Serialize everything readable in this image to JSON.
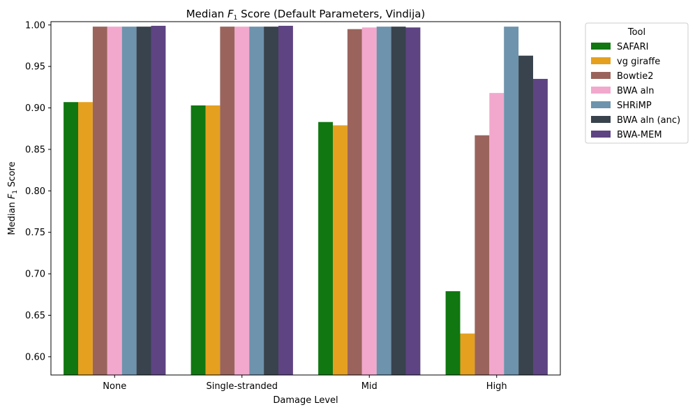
{
  "chart_data": {
    "type": "bar",
    "title": {
      "prefix": "Median ",
      "var": "F",
      "sub": "1",
      "suffix": " Score (Default Parameters, Vindija)"
    },
    "xlabel": "Damage Level",
    "ylabel": {
      "prefix": "Median ",
      "var": "F",
      "sub": "1",
      "suffix": " Score"
    },
    "categories": [
      "None",
      "Single-stranded",
      "Mid",
      "High"
    ],
    "ylim": [
      0.578,
      1.004
    ],
    "yticks": [
      "0.60",
      "0.65",
      "0.70",
      "0.75",
      "0.80",
      "0.85",
      "0.90",
      "0.95",
      "1.00"
    ],
    "grid": false,
    "legend": {
      "title": "Tool",
      "placement": "outside-top-right"
    },
    "series": [
      {
        "name": "SAFARI",
        "color": "#117711",
        "values": [
          0.907,
          0.903,
          0.883,
          0.679
        ]
      },
      {
        "name": "vg giraffe",
        "color": "#e5a01f",
        "values": [
          0.907,
          0.903,
          0.879,
          0.628
        ]
      },
      {
        "name": "Bowtie2",
        "color": "#9a645c",
        "values": [
          0.998,
          0.998,
          0.995,
          0.867
        ]
      },
      {
        "name": "BWA aln",
        "color": "#f2a8cd",
        "values": [
          0.998,
          0.998,
          0.997,
          0.918
        ]
      },
      {
        "name": "SHRiMP",
        "color": "#6e93ac",
        "values": [
          0.998,
          0.998,
          0.998,
          0.998
        ]
      },
      {
        "name": "BWA aln (anc)",
        "color": "#38434d",
        "values": [
          0.998,
          0.998,
          0.998,
          0.963
        ]
      },
      {
        "name": "BWA-MEM",
        "color": "#5e4482",
        "values": [
          0.999,
          0.999,
          0.997,
          0.935
        ]
      }
    ]
  }
}
